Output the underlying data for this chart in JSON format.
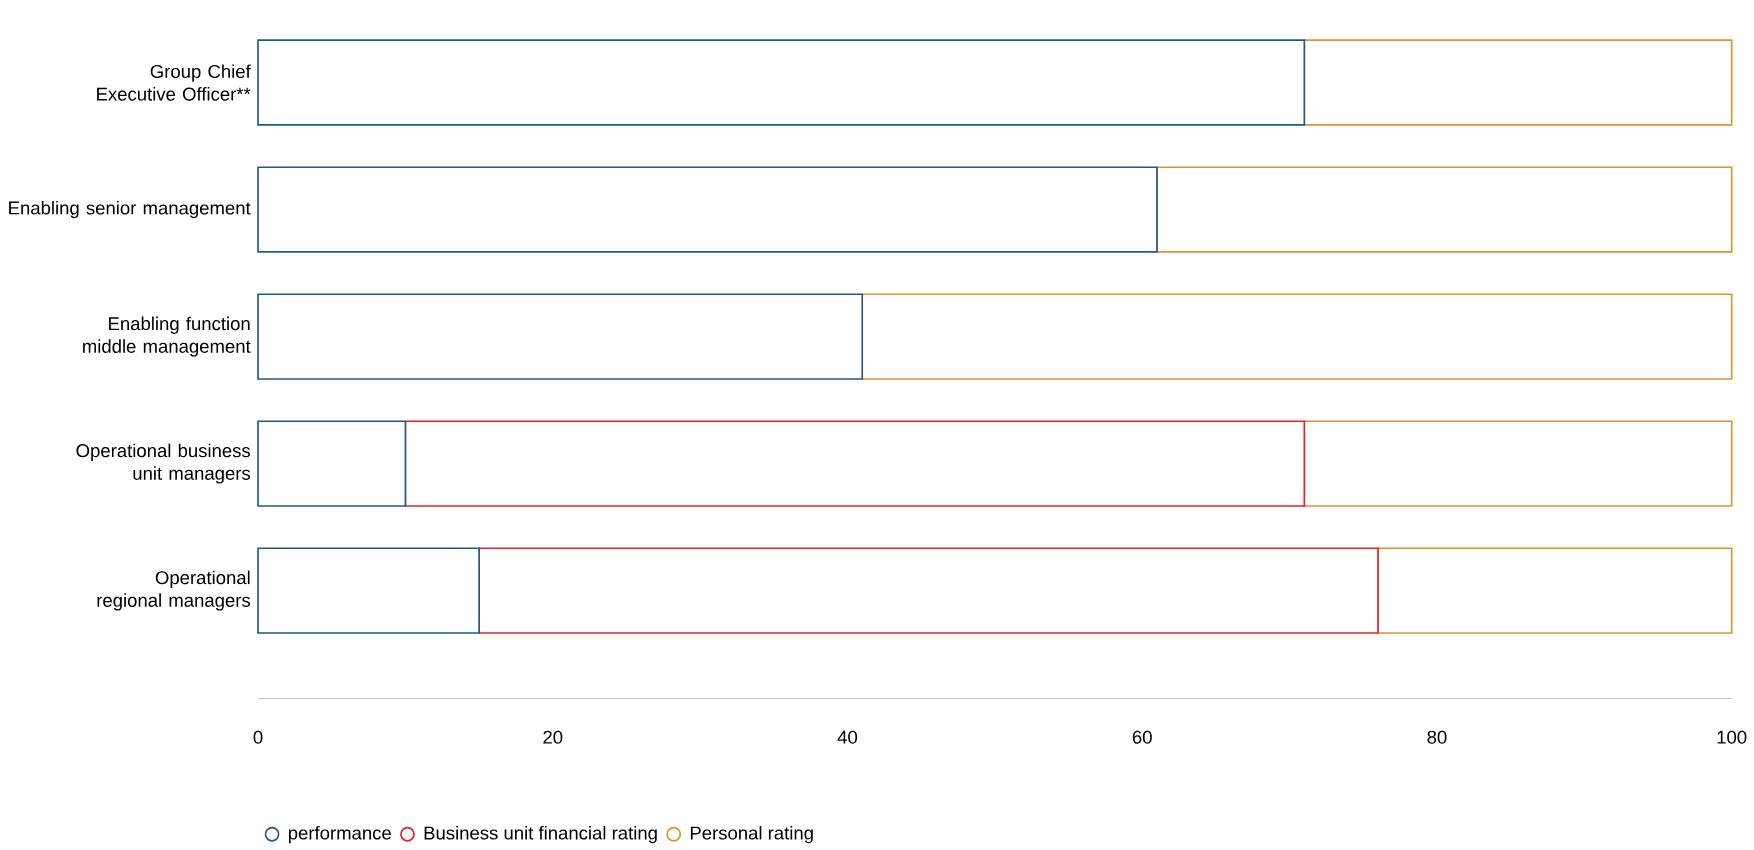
{
  "chart_data": {
    "type": "bar",
    "orientation": "horizontal",
    "stacked": true,
    "categories": [
      "Group Chief Executive Officer**",
      "Enabling senior management",
      "Enabling function middle management",
      "Operational business unit managers",
      "Operational regional managers"
    ],
    "series": [
      {
        "name": "performance",
        "color": "#1f5a8c",
        "values": [
          71,
          61,
          41,
          10,
          15
        ]
      },
      {
        "name": "Business unit financial rating",
        "color": "#e8202a",
        "values": [
          0,
          0,
          0,
          61,
          61
        ]
      },
      {
        "name": "Personal rating",
        "color": "#e0922f",
        "values": [
          29,
          39,
          59,
          29,
          24
        ]
      }
    ],
    "xlim": [
      0,
      100
    ],
    "xticks": [
      0,
      20,
      40,
      60,
      80,
      100
    ],
    "grid": false,
    "legend": "bottom",
    "marker": "circle"
  }
}
